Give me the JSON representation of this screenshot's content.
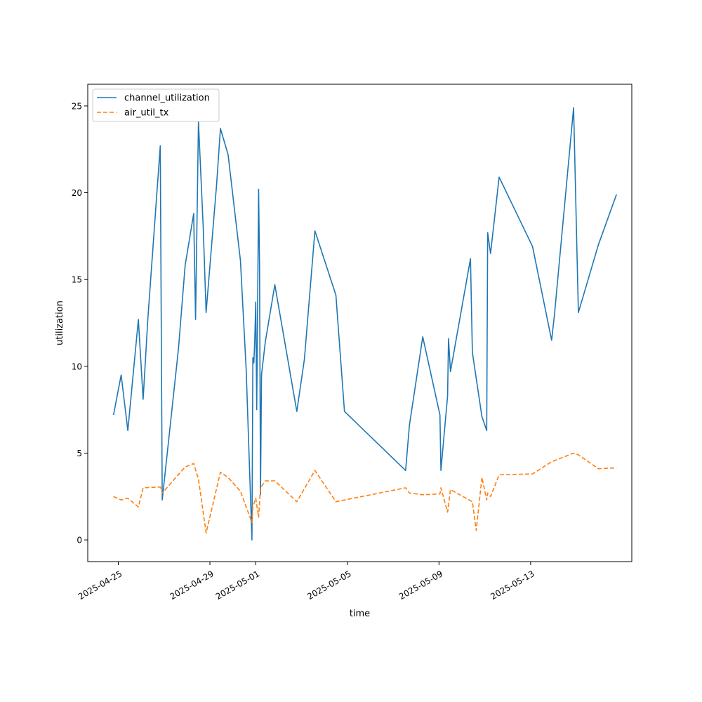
{
  "chart_data": {
    "type": "line",
    "title": "",
    "xlabel": "time",
    "ylabel": "utilization",
    "x_type": "datetime",
    "xlim": [
      "2025-04-23T16:00",
      "2025-05-17T10:00"
    ],
    "ylim": [
      -1.25,
      26.25
    ],
    "x_ticks": [
      "2025-04-25",
      "2025-04-29",
      "2025-05-01",
      "2025-05-05",
      "2025-05-09",
      "2025-05-13"
    ],
    "y_ticks": [
      0,
      5,
      10,
      15,
      20,
      25
    ],
    "grid": false,
    "legend_position": "upper left",
    "series": [
      {
        "name": "channel_utilization",
        "color": "#1f77b4",
        "dash": "solid",
        "points": [
          [
            "2025-04-24T19:00",
            7.2
          ],
          [
            "2025-04-25T03:00",
            9.5
          ],
          [
            "2025-04-25T10:00",
            6.3
          ],
          [
            "2025-04-25T21:00",
            12.7
          ],
          [
            "2025-04-26T02:00",
            8.1
          ],
          [
            "2025-04-26T07:00",
            12.8
          ],
          [
            "2025-04-26T20:00",
            22.7
          ],
          [
            "2025-04-26T22:00",
            2.3
          ],
          [
            "2025-04-27T15:00",
            11.0
          ],
          [
            "2025-04-27T22:00",
            15.8
          ],
          [
            "2025-04-28T07:00",
            18.8
          ],
          [
            "2025-04-28T09:00",
            12.7
          ],
          [
            "2025-04-28T12:00",
            24.1
          ],
          [
            "2025-04-28T17:00",
            18.0
          ],
          [
            "2025-04-28T20:00",
            13.1
          ],
          [
            "2025-04-29T07:00",
            20.5
          ],
          [
            "2025-04-29T11:00",
            23.7
          ],
          [
            "2025-04-29T19:00",
            22.2
          ],
          [
            "2025-04-30T08:00",
            16.1
          ],
          [
            "2025-04-30T14:00",
            9.8
          ],
          [
            "2025-04-30T20:00",
            0.0
          ],
          [
            "2025-04-30T21:00",
            10.5
          ],
          [
            "2025-04-30T22:00",
            10.2
          ],
          [
            "2025-04-30T23:00",
            11.5
          ],
          [
            "2025-05-01T00:00",
            13.7
          ],
          [
            "2025-05-01T01:00",
            7.5
          ],
          [
            "2025-05-01T03:00",
            20.2
          ],
          [
            "2025-05-01T04:00",
            15.8
          ],
          [
            "2025-05-01T05:00",
            2.6
          ],
          [
            "2025-05-01T06:00",
            9.5
          ],
          [
            "2025-05-01T10:00",
            11.4
          ],
          [
            "2025-05-01T20:00",
            14.7
          ],
          [
            "2025-05-02T19:00",
            7.4
          ],
          [
            "2025-05-03T03:00",
            10.4
          ],
          [
            "2025-05-03T14:00",
            17.8
          ],
          [
            "2025-05-04T12:00",
            14.1
          ],
          [
            "2025-05-04T21:00",
            7.4
          ],
          [
            "2025-05-07T13:00",
            4.0
          ],
          [
            "2025-05-07T17:00",
            6.6
          ],
          [
            "2025-05-08T07:00",
            11.7
          ],
          [
            "2025-05-09T01:00",
            7.2
          ],
          [
            "2025-05-09T02:00",
            4.0
          ],
          [
            "2025-05-09T09:00",
            8.3
          ],
          [
            "2025-05-09T10:00",
            11.6
          ],
          [
            "2025-05-09T12:00",
            9.7
          ],
          [
            "2025-05-10T09:00",
            16.2
          ],
          [
            "2025-05-10T11:00",
            10.8
          ],
          [
            "2025-05-10T21:00",
            7.1
          ],
          [
            "2025-05-11T02:00",
            6.3
          ],
          [
            "2025-05-11T03:00",
            17.7
          ],
          [
            "2025-05-11T06:00",
            16.5
          ],
          [
            "2025-05-11T15:00",
            20.9
          ],
          [
            "2025-05-13T02:00",
            16.9
          ],
          [
            "2025-05-13T22:00",
            11.5
          ],
          [
            "2025-05-14T01:00",
            13.0
          ],
          [
            "2025-05-14T21:00",
            24.9
          ],
          [
            "2025-05-15T02:00",
            13.1
          ],
          [
            "2025-05-15T23:00",
            17.0
          ],
          [
            "2025-05-16T18:00",
            19.9
          ]
        ]
      },
      {
        "name": "air_util_tx",
        "color": "#ff7f0e",
        "dash": "dashed",
        "points": [
          [
            "2025-04-24T19:00",
            2.5
          ],
          [
            "2025-04-25T03:00",
            2.3
          ],
          [
            "2025-04-25T10:00",
            2.4
          ],
          [
            "2025-04-25T21:00",
            1.9
          ],
          [
            "2025-04-26T02:00",
            3.0
          ],
          [
            "2025-04-26T20:00",
            3.05
          ],
          [
            "2025-04-26T22:00",
            2.7
          ],
          [
            "2025-04-27T22:00",
            4.2
          ],
          [
            "2025-04-28T07:00",
            4.4
          ],
          [
            "2025-04-28T12:00",
            3.5
          ],
          [
            "2025-04-28T20:00",
            0.4
          ],
          [
            "2025-04-29T11:00",
            3.9
          ],
          [
            "2025-04-29T19:00",
            3.6
          ],
          [
            "2025-04-30T08:00",
            2.8
          ],
          [
            "2025-04-30T20:00",
            1.0
          ],
          [
            "2025-04-30T21:00",
            1.9
          ],
          [
            "2025-05-01T00:00",
            2.4
          ],
          [
            "2025-05-01T03:00",
            1.3
          ],
          [
            "2025-05-01T05:00",
            3.0
          ],
          [
            "2025-05-01T10:00",
            3.4
          ],
          [
            "2025-05-01T20:00",
            3.4
          ],
          [
            "2025-05-02T19:00",
            2.2
          ],
          [
            "2025-05-03T14:00",
            4.0
          ],
          [
            "2025-05-04T12:00",
            2.2
          ],
          [
            "2025-05-07T13:00",
            3.0
          ],
          [
            "2025-05-07T17:00",
            2.7
          ],
          [
            "2025-05-08T07:00",
            2.6
          ],
          [
            "2025-05-09T01:00",
            2.65
          ],
          [
            "2025-05-09T02:00",
            3.0
          ],
          [
            "2025-05-09T09:00",
            1.6
          ],
          [
            "2025-05-09T12:00",
            2.9
          ],
          [
            "2025-05-10T11:00",
            2.2
          ],
          [
            "2025-05-10T15:00",
            0.55
          ],
          [
            "2025-05-10T21:00",
            3.6
          ],
          [
            "2025-05-11T02:00",
            2.3
          ],
          [
            "2025-05-11T03:00",
            2.7
          ],
          [
            "2025-05-11T06:00",
            2.5
          ],
          [
            "2025-05-11T15:00",
            3.75
          ],
          [
            "2025-05-13T02:00",
            3.8
          ],
          [
            "2025-05-13T22:00",
            4.5
          ],
          [
            "2025-05-14T21:00",
            5.0
          ],
          [
            "2025-05-15T02:00",
            4.9
          ],
          [
            "2025-05-15T23:00",
            4.1
          ],
          [
            "2025-05-16T18:00",
            4.15
          ]
        ]
      }
    ]
  }
}
